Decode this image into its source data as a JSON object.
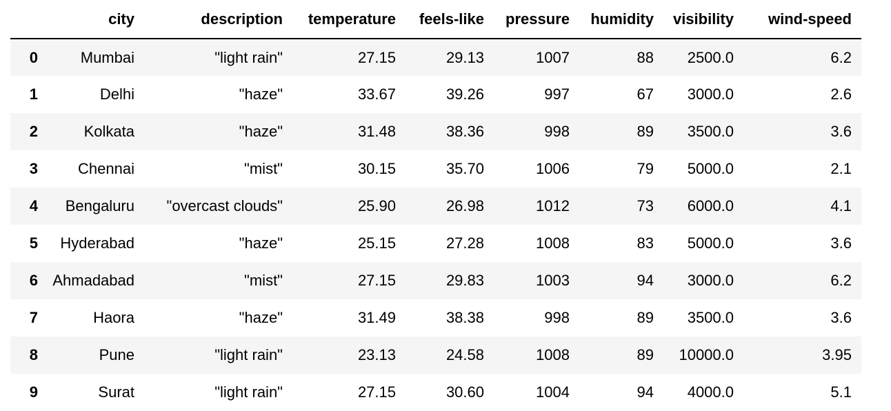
{
  "table": {
    "columns": [
      "",
      "city",
      "description",
      "temperature",
      "feels-like",
      "pressure",
      "humidity",
      "visibility",
      "wind-speed"
    ],
    "rows": [
      {
        "index": "0",
        "city": "Mumbai",
        "description": "\"light rain\"",
        "temperature": "27.15",
        "feels_like": "29.13",
        "pressure": "1007",
        "humidity": "88",
        "visibility": "2500.0",
        "wind_speed": "6.2"
      },
      {
        "index": "1",
        "city": "Delhi",
        "description": "\"haze\"",
        "temperature": "33.67",
        "feels_like": "39.26",
        "pressure": "997",
        "humidity": "67",
        "visibility": "3000.0",
        "wind_speed": "2.6"
      },
      {
        "index": "2",
        "city": "Kolkata",
        "description": "\"haze\"",
        "temperature": "31.48",
        "feels_like": "38.36",
        "pressure": "998",
        "humidity": "89",
        "visibility": "3500.0",
        "wind_speed": "3.6"
      },
      {
        "index": "3",
        "city": "Chennai",
        "description": "\"mist\"",
        "temperature": "30.15",
        "feels_like": "35.70",
        "pressure": "1006",
        "humidity": "79",
        "visibility": "5000.0",
        "wind_speed": "2.1"
      },
      {
        "index": "4",
        "city": "Bengaluru",
        "description": "\"overcast clouds\"",
        "temperature": "25.90",
        "feels_like": "26.98",
        "pressure": "1012",
        "humidity": "73",
        "visibility": "6000.0",
        "wind_speed": "4.1"
      },
      {
        "index": "5",
        "city": "Hyderabad",
        "description": "\"haze\"",
        "temperature": "25.15",
        "feels_like": "27.28",
        "pressure": "1008",
        "humidity": "83",
        "visibility": "5000.0",
        "wind_speed": "3.6"
      },
      {
        "index": "6",
        "city": "Ahmadabad",
        "description": "\"mist\"",
        "temperature": "27.15",
        "feels_like": "29.83",
        "pressure": "1003",
        "humidity": "94",
        "visibility": "3000.0",
        "wind_speed": "6.2"
      },
      {
        "index": "7",
        "city": "Haora",
        "description": "\"haze\"",
        "temperature": "31.49",
        "feels_like": "38.38",
        "pressure": "998",
        "humidity": "89",
        "visibility": "3500.0",
        "wind_speed": "3.6"
      },
      {
        "index": "8",
        "city": "Pune",
        "description": "\"light rain\"",
        "temperature": "23.13",
        "feels_like": "24.58",
        "pressure": "1008",
        "humidity": "89",
        "visibility": "10000.0",
        "wind_speed": "3.95"
      },
      {
        "index": "9",
        "city": "Surat",
        "description": "\"light rain\"",
        "temperature": "27.15",
        "feels_like": "30.60",
        "pressure": "1004",
        "humidity": "94",
        "visibility": "4000.0",
        "wind_speed": "5.1"
      }
    ]
  },
  "colors": {
    "row_stripe": "#f5f5f5",
    "background": "#ffffff",
    "text": "#000000"
  }
}
